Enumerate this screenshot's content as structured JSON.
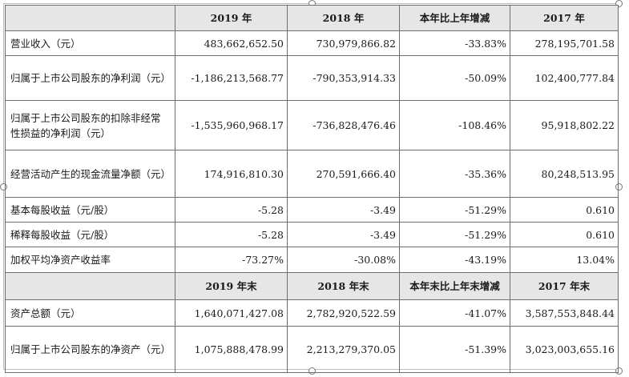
{
  "header1": [
    "",
    "2019 年",
    "2018 年",
    "本年比上年增减",
    "2017 年"
  ],
  "rows1": [
    [
      "营业收入（元）",
      "483,662,652.50",
      "730,979,866.82",
      "-33.83%",
      "278,195,701.58"
    ],
    [
      "归属于上市公司股东的净利润（元）",
      "-1,186,213,568.77",
      "-790,353,914.33",
      "-50.09%",
      "102,400,777.84"
    ],
    [
      "归属于上市公司股东的扣除非经常性损益的净利润（元）",
      "-1,535,960,968.17",
      "-736,828,476.46",
      "-108.46%",
      "95,918,802.22"
    ],
    [
      "经营活动产生的现金流量净额（元）",
      "174,916,810.30",
      "270,591,666.40",
      "-35.36%",
      "80,248,513.95"
    ],
    [
      "基本每股收益（元/股）",
      "-5.28",
      "-3.49",
      "-51.29%",
      "0.610"
    ],
    [
      "稀释每股收益（元/股）",
      "-5.28",
      "-3.49",
      "-51.29%",
      "0.610"
    ],
    [
      "加权平均净资产收益率",
      "-73.27%",
      "-30.08%",
      "-43.19%",
      "13.04%"
    ]
  ],
  "header2": [
    "",
    "2019 年末",
    "2018 年末",
    "本年末比上年末增减",
    "2017 年末"
  ],
  "rows2": [
    [
      "资产总额（元）",
      "1,640,071,427.08",
      "2,782,920,522.59",
      "-41.07%",
      "3,587,553,848.44"
    ],
    [
      "归属于上市公司股东的净资产（元）",
      "1,075,888,478.99",
      "2,213,279,370.05",
      "-51.39%",
      "3,023,003,655.16"
    ]
  ]
}
